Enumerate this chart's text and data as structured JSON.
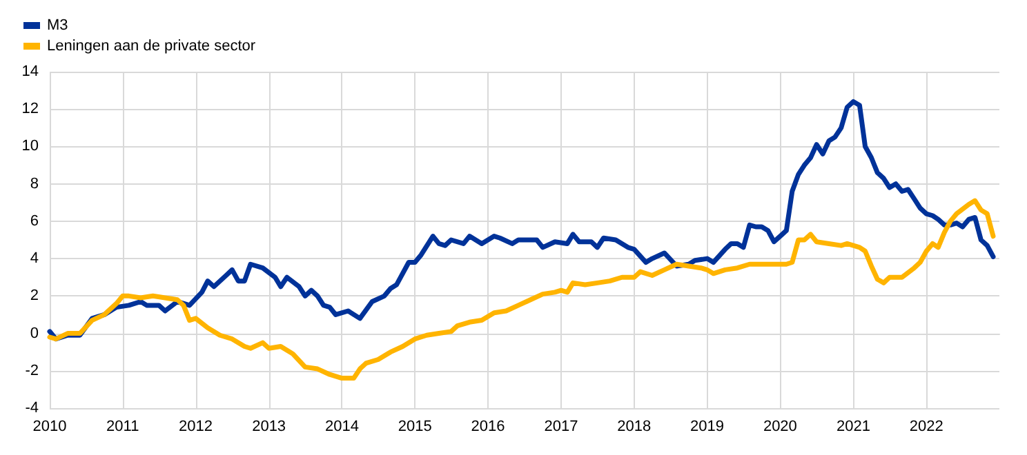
{
  "chart_data": {
    "type": "line",
    "legend": "top left",
    "grid": true,
    "marker": "none",
    "line_style": "solid",
    "xlim": [
      "2010-01",
      "2023-01"
    ],
    "xticks": [
      "2010",
      "2011",
      "2012",
      "2013",
      "2014",
      "2015",
      "2016",
      "2017",
      "2018",
      "2019",
      "2020",
      "2021",
      "2022"
    ],
    "ylim": [
      -4,
      14
    ],
    "yticks": [
      -4,
      -2,
      0,
      2,
      4,
      6,
      8,
      10,
      12,
      14
    ],
    "series": [
      {
        "name": "M3",
        "color": "#003299",
        "x": [
          "2010-01",
          "2010-02",
          "2010-04",
          "2010-06",
          "2010-08",
          "2010-10",
          "2010-12",
          "2011-02",
          "2011-04",
          "2011-05",
          "2011-07",
          "2011-08",
          "2011-10",
          "2011-12",
          "2012-02",
          "2012-03",
          "2012-04",
          "2012-06",
          "2012-07",
          "2012-08",
          "2012-09",
          "2012-10",
          "2012-12",
          "2013-02",
          "2013-03",
          "2013-04",
          "2013-06",
          "2013-07",
          "2013-08",
          "2013-09",
          "2013-10",
          "2013-11",
          "2013-12",
          "2014-02",
          "2014-04",
          "2014-06",
          "2014-08",
          "2014-09",
          "2014-10",
          "2014-12",
          "2015-01",
          "2015-02",
          "2015-04",
          "2015-05",
          "2015-06",
          "2015-07",
          "2015-09",
          "2015-10",
          "2015-12",
          "2016-02",
          "2016-03",
          "2016-05",
          "2016-06",
          "2016-09",
          "2016-10",
          "2016-12",
          "2017-02",
          "2017-03",
          "2017-04",
          "2017-06",
          "2017-07",
          "2017-08",
          "2017-10",
          "2017-12",
          "2018-01",
          "2018-03",
          "2018-04",
          "2018-06",
          "2018-08",
          "2018-10",
          "2018-11",
          "2019-01",
          "2019-02",
          "2019-04",
          "2019-05",
          "2019-06",
          "2019-07",
          "2019-08",
          "2019-09",
          "2019-10",
          "2019-11",
          "2019-12",
          "2020-01",
          "2020-02",
          "2020-03",
          "2020-04",
          "2020-05",
          "2020-06",
          "2020-07",
          "2020-08",
          "2020-09",
          "2020-10",
          "2020-11",
          "2020-12",
          "2021-01",
          "2021-02",
          "2021-03",
          "2021-04",
          "2021-05",
          "2021-06",
          "2021-07",
          "2021-08",
          "2021-09",
          "2021-10",
          "2021-11",
          "2021-12",
          "2022-01",
          "2022-02",
          "2022-03",
          "2022-04",
          "2022-05",
          "2022-06",
          "2022-07",
          "2022-08",
          "2022-09",
          "2022-10",
          "2022-11",
          "2022-12"
        ],
        "values": [
          0.1,
          -0.3,
          -0.1,
          -0.1,
          0.8,
          1.0,
          1.4,
          1.5,
          1.7,
          1.5,
          1.5,
          1.2,
          1.7,
          1.5,
          2.2,
          2.8,
          2.5,
          3.1,
          3.4,
          2.8,
          2.8,
          3.7,
          3.5,
          3.0,
          2.5,
          3.0,
          2.5,
          2.0,
          2.3,
          2.0,
          1.5,
          1.4,
          1.0,
          1.2,
          0.8,
          1.7,
          2.0,
          2.4,
          2.6,
          3.8,
          3.8,
          4.2,
          5.2,
          4.8,
          4.7,
          5.0,
          4.8,
          5.2,
          4.8,
          5.2,
          5.1,
          4.8,
          5.0,
          5.0,
          4.6,
          4.9,
          4.8,
          5.3,
          4.9,
          4.9,
          4.6,
          5.1,
          5.0,
          4.6,
          4.5,
          3.8,
          4.0,
          4.3,
          3.6,
          3.7,
          3.9,
          4.0,
          3.8,
          4.5,
          4.8,
          4.8,
          4.6,
          5.8,
          5.7,
          5.7,
          5.5,
          4.9,
          5.2,
          5.5,
          7.6,
          8.5,
          9.0,
          9.4,
          10.1,
          9.6,
          10.3,
          10.5,
          11.0,
          12.1,
          12.4,
          12.2,
          10.0,
          9.4,
          8.6,
          8.3,
          7.8,
          8.0,
          7.6,
          7.7,
          7.2,
          6.7,
          6.4,
          6.3,
          6.1,
          5.8,
          5.8,
          5.9,
          5.7,
          6.1,
          6.2,
          5.0,
          4.7,
          4.1
        ]
      },
      {
        "name": "Leningen aan de private sector",
        "color": "#ffb400",
        "x": [
          "2010-01",
          "2010-02",
          "2010-04",
          "2010-06",
          "2010-08",
          "2010-10",
          "2010-12",
          "2011-01",
          "2011-02",
          "2011-04",
          "2011-06",
          "2011-08",
          "2011-10",
          "2011-11",
          "2011-12",
          "2012-01",
          "2012-03",
          "2012-05",
          "2012-07",
          "2012-09",
          "2012-10",
          "2012-12",
          "2013-01",
          "2013-03",
          "2013-05",
          "2013-07",
          "2013-09",
          "2013-11",
          "2014-01",
          "2014-03",
          "2014-04",
          "2014-05",
          "2014-07",
          "2014-09",
          "2014-11",
          "2015-01",
          "2015-03",
          "2015-05",
          "2015-07",
          "2015-08",
          "2015-10",
          "2015-12",
          "2016-02",
          "2016-04",
          "2016-06",
          "2016-08",
          "2016-10",
          "2016-12",
          "2017-01",
          "2017-02",
          "2017-03",
          "2017-05",
          "2017-07",
          "2017-09",
          "2017-11",
          "2018-01",
          "2018-02",
          "2018-04",
          "2018-06",
          "2018-08",
          "2018-10",
          "2018-12",
          "2019-01",
          "2019-02",
          "2019-04",
          "2019-06",
          "2019-08",
          "2019-10",
          "2019-12",
          "2020-02",
          "2020-03",
          "2020-04",
          "2020-05",
          "2020-06",
          "2020-07",
          "2020-09",
          "2020-11",
          "2020-12",
          "2021-02",
          "2021-03",
          "2021-04",
          "2021-05",
          "2021-06",
          "2021-07",
          "2021-09",
          "2021-11",
          "2021-12",
          "2022-01",
          "2022-02",
          "2022-03",
          "2022-04",
          "2022-05",
          "2022-06",
          "2022-08",
          "2022-09",
          "2022-10",
          "2022-11",
          "2022-12"
        ],
        "values": [
          -0.2,
          -0.3,
          0.0,
          0.0,
          0.7,
          1.0,
          1.6,
          2.0,
          2.0,
          1.9,
          2.0,
          1.9,
          1.8,
          1.5,
          0.7,
          0.8,
          0.3,
          -0.1,
          -0.3,
          -0.7,
          -0.8,
          -0.5,
          -0.8,
          -0.7,
          -1.1,
          -1.8,
          -1.9,
          -2.2,
          -2.4,
          -2.4,
          -1.9,
          -1.6,
          -1.4,
          -1.0,
          -0.7,
          -0.3,
          -0.1,
          0.0,
          0.1,
          0.4,
          0.6,
          0.7,
          1.1,
          1.2,
          1.5,
          1.8,
          2.1,
          2.2,
          2.3,
          2.2,
          2.7,
          2.6,
          2.7,
          2.8,
          3.0,
          3.0,
          3.3,
          3.1,
          3.4,
          3.7,
          3.6,
          3.5,
          3.4,
          3.2,
          3.4,
          3.5,
          3.7,
          3.7,
          3.7,
          3.7,
          3.8,
          5.0,
          5.0,
          5.3,
          4.9,
          4.8,
          4.7,
          4.8,
          4.6,
          4.4,
          3.6,
          2.9,
          2.7,
          3.0,
          3.0,
          3.5,
          3.8,
          4.4,
          4.8,
          4.6,
          5.4,
          6.0,
          6.4,
          6.9,
          7.1,
          6.6,
          6.4,
          5.2
        ]
      }
    ]
  }
}
